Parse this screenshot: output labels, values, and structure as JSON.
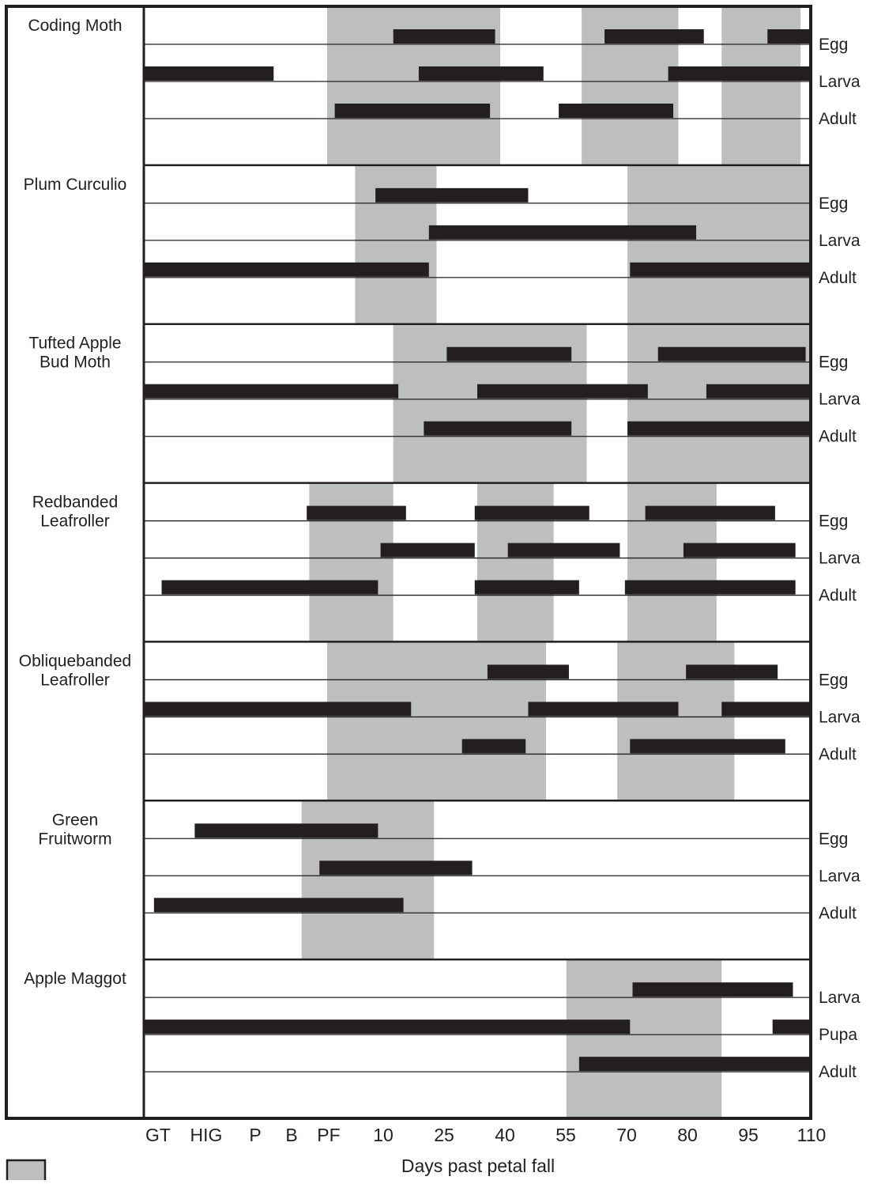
{
  "chart_data": {
    "type": "timeline",
    "x_axis": {
      "ticks": [
        "GT",
        "HIG",
        "P",
        "B",
        "PF",
        "10",
        "25",
        "40",
        "55",
        "70",
        "80",
        "95",
        "110"
      ],
      "label": "Days past petal fall"
    },
    "legend_text": "",
    "colors": {
      "window": "#bcbec0",
      "bar": "#231f20",
      "frame": "#231f20"
    },
    "pests": [
      {
        "name": [
          "Coding Moth"
        ],
        "windows": [
          [
            3.6,
            7.0
          ],
          [
            8.6,
            10.5
          ],
          [
            11.35,
            12.9
          ]
        ],
        "rows": [
          {
            "stage": "Egg",
            "bars": [
              [
                4.9,
                6.9
              ],
              [
                9.05,
                11.0
              ],
              [
                12.25,
                13.1
              ]
            ]
          },
          {
            "stage": "Larva",
            "bars": [
              [
                0.0,
                2.55
              ],
              [
                5.4,
                7.85
              ],
              [
                10.3,
                13.1
              ]
            ]
          },
          {
            "stage": "Adult",
            "bars": [
              [
                3.75,
                6.8
              ],
              [
                8.15,
                10.4
              ]
            ]
          }
        ]
      },
      {
        "name": [
          "Plum Curculio"
        ],
        "windows": [
          [
            4.15,
            5.75
          ],
          [
            9.5,
            13.1
          ]
        ],
        "rows": [
          {
            "stage": "Egg",
            "bars": [
              [
                4.55,
                7.55
              ]
            ]
          },
          {
            "stage": "Larva",
            "bars": [
              [
                5.6,
                10.85
              ]
            ]
          },
          {
            "stage": "Adult",
            "bars": [
              [
                0.0,
                5.6
              ],
              [
                9.55,
                13.1
              ]
            ]
          }
        ]
      },
      {
        "name": [
          "Tufted Apple",
          "Bud Moth"
        ],
        "windows": [
          [
            4.9,
            8.7
          ],
          [
            9.5,
            13.1
          ]
        ],
        "rows": [
          {
            "stage": "Egg",
            "bars": [
              [
                5.95,
                8.4
              ],
              [
                10.1,
                13.0
              ]
            ]
          },
          {
            "stage": "Larva",
            "bars": [
              [
                0.0,
                5.0
              ],
              [
                6.55,
                9.9
              ],
              [
                11.05,
                13.1
              ]
            ]
          },
          {
            "stage": "Adult",
            "bars": [
              [
                5.5,
                8.4
              ],
              [
                9.5,
                13.1
              ]
            ]
          }
        ]
      },
      {
        "name": [
          "Redbanded",
          "Leafroller"
        ],
        "windows": [
          [
            3.25,
            4.9
          ],
          [
            6.55,
            8.05
          ],
          [
            9.5,
            11.25
          ]
        ],
        "rows": [
          {
            "stage": "Egg",
            "bars": [
              [
                3.2,
                5.15
              ],
              [
                6.5,
                8.75
              ],
              [
                9.85,
                12.4
              ]
            ]
          },
          {
            "stage": "Larva",
            "bars": [
              [
                4.65,
                6.5
              ],
              [
                7.15,
                9.35
              ],
              [
                10.6,
                12.8
              ]
            ]
          },
          {
            "stage": "Adult",
            "bars": [
              [
                0.35,
                4.6
              ],
              [
                6.5,
                8.55
              ],
              [
                9.45,
                12.8
              ]
            ]
          }
        ]
      },
      {
        "name": [
          "Obliquebanded",
          "Leafroller"
        ],
        "windows": [
          [
            3.6,
            7.9
          ],
          [
            9.3,
            11.6
          ]
        ],
        "rows": [
          {
            "stage": "Egg",
            "bars": [
              [
                6.75,
                8.35
              ],
              [
                10.65,
                12.45
              ]
            ]
          },
          {
            "stage": "Larva",
            "bars": [
              [
                0.0,
                5.25
              ],
              [
                7.55,
                10.5
              ],
              [
                11.35,
                13.1
              ]
            ]
          },
          {
            "stage": "Adult",
            "bars": [
              [
                6.25,
                7.5
              ],
              [
                9.55,
                12.6
              ]
            ]
          }
        ]
      },
      {
        "name": [
          "Green",
          "Fruitworm"
        ],
        "windows": [
          [
            3.1,
            5.7
          ]
        ],
        "rows": [
          {
            "stage": "Egg",
            "bars": [
              [
                1.0,
                4.6
              ]
            ]
          },
          {
            "stage": "Larva",
            "bars": [
              [
                3.45,
                6.45
              ]
            ]
          },
          {
            "stage": "Adult",
            "bars": [
              [
                0.2,
                5.1
              ]
            ]
          }
        ]
      },
      {
        "name": [
          "Apple Maggot"
        ],
        "windows": [
          [
            8.3,
            11.35
          ]
        ],
        "rows": [
          {
            "stage": "Larva",
            "bars": [
              [
                9.6,
                12.75
              ]
            ]
          },
          {
            "stage": "Pupa",
            "bars": [
              [
                0.0,
                9.55
              ],
              [
                12.35,
                13.1
              ]
            ]
          },
          {
            "stage": "Adult",
            "bars": [
              [
                8.55,
                13.1
              ]
            ]
          }
        ]
      }
    ]
  }
}
